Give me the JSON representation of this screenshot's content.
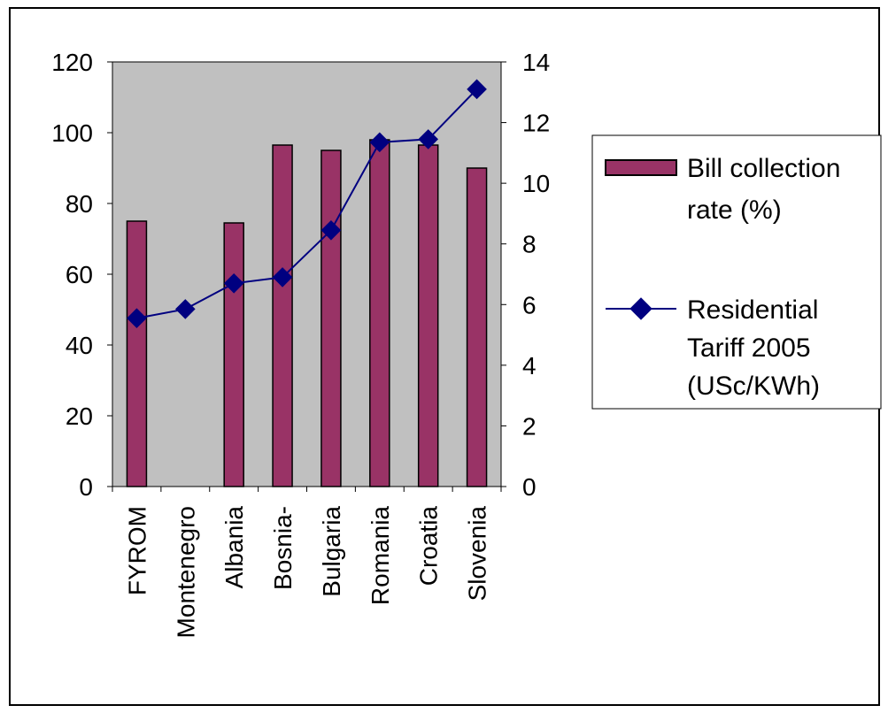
{
  "chart_data": {
    "type": "bar",
    "categories": [
      "FYROM",
      "Montenegro",
      "Albania",
      "Bosnia-",
      "Bulgaria",
      "Romania",
      "Croatia",
      "Slovenia"
    ],
    "series": [
      {
        "name": "Bill collection rate (%)",
        "kind": "bar",
        "axis": "left",
        "values": [
          75,
          null,
          74.5,
          96.5,
          95,
          98,
          96.5,
          90
        ],
        "color": "#993366"
      },
      {
        "name": "Residential Tariff 2005 (USc/KWh)",
        "kind": "line",
        "axis": "right",
        "values": [
          5.55,
          5.85,
          6.7,
          6.9,
          8.45,
          11.35,
          11.45,
          13.1
        ],
        "color": "#000080"
      }
    ],
    "y_left": {
      "ylim": [
        0,
        120
      ],
      "ticks": [
        0,
        20,
        40,
        60,
        80,
        100,
        120
      ]
    },
    "y_right": {
      "ylim": [
        0,
        14
      ],
      "ticks": [
        0,
        2,
        4,
        6,
        8,
        10,
        12,
        14
      ]
    },
    "plot_background": "#c0c0c0",
    "grid": false,
    "legend_position": "right",
    "legend": [
      {
        "lines": [
          "Bill collection",
          "rate (%)"
        ]
      },
      {
        "lines": [
          "Residential",
          "Tariff 2005",
          "(USc/KWh)"
        ]
      }
    ]
  }
}
